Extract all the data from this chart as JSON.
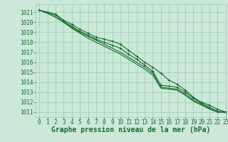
{
  "title": "Graphe pression niveau de la mer (hPa)",
  "bg_color": "#cce8d8",
  "plot_bg_color": "#cce8d8",
  "grid_color": "#99ccb0",
  "line_color": "#1a6b30",
  "marker_color": "#1a6b30",
  "xlim": [
    -0.5,
    23
  ],
  "ylim": [
    1010.5,
    1021.8
  ],
  "yticks": [
    1011,
    1012,
    1013,
    1014,
    1015,
    1016,
    1017,
    1018,
    1019,
    1020,
    1021
  ],
  "xticks": [
    0,
    1,
    2,
    3,
    4,
    5,
    6,
    7,
    8,
    9,
    10,
    11,
    12,
    13,
    14,
    15,
    16,
    17,
    18,
    19,
    20,
    21,
    22,
    23
  ],
  "series": [
    [
      1021.2,
      1021.0,
      1020.8,
      1020.2,
      1019.8,
      1019.3,
      1018.9,
      1018.5,
      1018.3,
      1018.1,
      1017.8,
      1017.2,
      1016.6,
      1016.0,
      1015.5,
      1014.9,
      1014.2,
      1013.8,
      1013.2,
      1012.5,
      1012.0,
      1011.7,
      1011.3,
      1011.0
    ],
    [
      1021.2,
      1021.0,
      1020.7,
      1020.1,
      1019.6,
      1019.1,
      1018.7,
      1018.3,
      1018.0,
      1017.7,
      1017.4,
      1016.8,
      1016.3,
      1015.7,
      1015.1,
      1013.7,
      1013.6,
      1013.5,
      1013.0,
      1012.4,
      1011.9,
      1011.5,
      1011.1,
      1011.0
    ],
    [
      1021.2,
      1020.9,
      1020.5,
      1020.0,
      1019.5,
      1019.0,
      1018.6,
      1018.2,
      1017.8,
      1017.4,
      1017.0,
      1016.5,
      1016.0,
      1015.5,
      1014.9,
      1013.5,
      1013.4,
      1013.3,
      1012.8,
      1012.2,
      1011.8,
      1011.4,
      1011.0,
      1011.0
    ],
    [
      1021.2,
      1020.9,
      1020.5,
      1020.0,
      1019.4,
      1018.9,
      1018.4,
      1018.0,
      1017.6,
      1017.2,
      1016.8,
      1016.3,
      1015.8,
      1015.3,
      1014.7,
      1013.4,
      1013.3,
      1013.2,
      1012.7,
      1012.1,
      1011.7,
      1011.3,
      1011.0,
      1011.0
    ]
  ],
  "has_markers": [
    true,
    true,
    false,
    false
  ],
  "title_fontsize": 7,
  "tick_fontsize": 5.5,
  "title_color": "#1a6b30",
  "tick_color": "#1a6b30"
}
